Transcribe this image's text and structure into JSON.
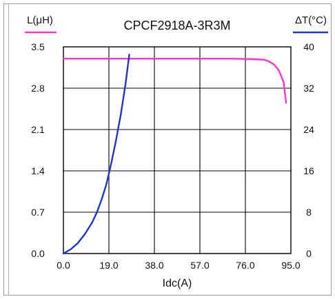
{
  "chart_data": {
    "type": "line",
    "title": "CPCF2918A-3R3M",
    "xlabel": "Idc(A)",
    "y_left_label": "L(μH)",
    "y_right_label": "ΔT(°C)",
    "xlim": [
      0,
      95
    ],
    "y_left_lim": [
      0,
      3.5
    ],
    "y_right_lim": [
      0,
      40
    ],
    "x_ticks": [
      "0.0",
      "19.0",
      "38.0",
      "57.0",
      "76.0",
      "95.0"
    ],
    "y_left_ticks": [
      "0.0",
      "0.7",
      "1.4",
      "2.1",
      "2.8",
      "3.5"
    ],
    "y_right_ticks": [
      "0",
      "8",
      "16",
      "24",
      "32",
      "40"
    ],
    "grid": true,
    "series": [
      {
        "axis": "left",
        "color": "#ff33cc",
        "x": [
          0,
          10,
          20,
          30,
          40,
          50,
          60,
          70,
          80,
          84,
          86,
          88,
          90,
          91,
          92,
          93
        ],
        "y": [
          3.3,
          3.3,
          3.3,
          3.3,
          3.3,
          3.3,
          3.3,
          3.3,
          3.29,
          3.28,
          3.25,
          3.2,
          3.1,
          3.0,
          2.9,
          2.55
        ]
      },
      {
        "axis": "right",
        "color": "#2233cc",
        "x": [
          0,
          3,
          6,
          9,
          12,
          14,
          16,
          18,
          20,
          22,
          24,
          26,
          27.5
        ],
        "y": [
          0,
          0.8,
          2,
          3.8,
          6,
          8,
          10.5,
          13.5,
          17.5,
          22,
          27,
          33,
          38.5
        ]
      }
    ]
  }
}
